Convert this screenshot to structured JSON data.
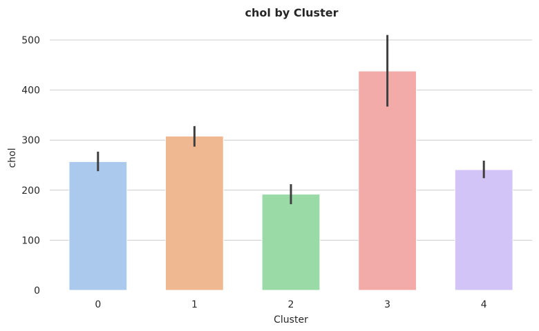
{
  "chart_data": {
    "type": "bar",
    "title": "chol by Cluster",
    "xlabel": "Cluster",
    "ylabel": "chol",
    "categories": [
      "0",
      "1",
      "2",
      "3",
      "4"
    ],
    "values": [
      257,
      308,
      192,
      438,
      241
    ],
    "error_low": [
      238,
      287,
      172,
      367,
      224
    ],
    "error_high": [
      277,
      328,
      212,
      510,
      259
    ],
    "colors": [
      "#abc9ed",
      "#f0b891",
      "#9adaa7",
      "#f2aba8",
      "#d2c4f7"
    ],
    "yticks": [
      0,
      100,
      200,
      300,
      400,
      500
    ],
    "ylim": [
      0,
      530
    ],
    "grid": true,
    "error_color": "#3f3f3f",
    "grid_color": "#cccccc"
  }
}
